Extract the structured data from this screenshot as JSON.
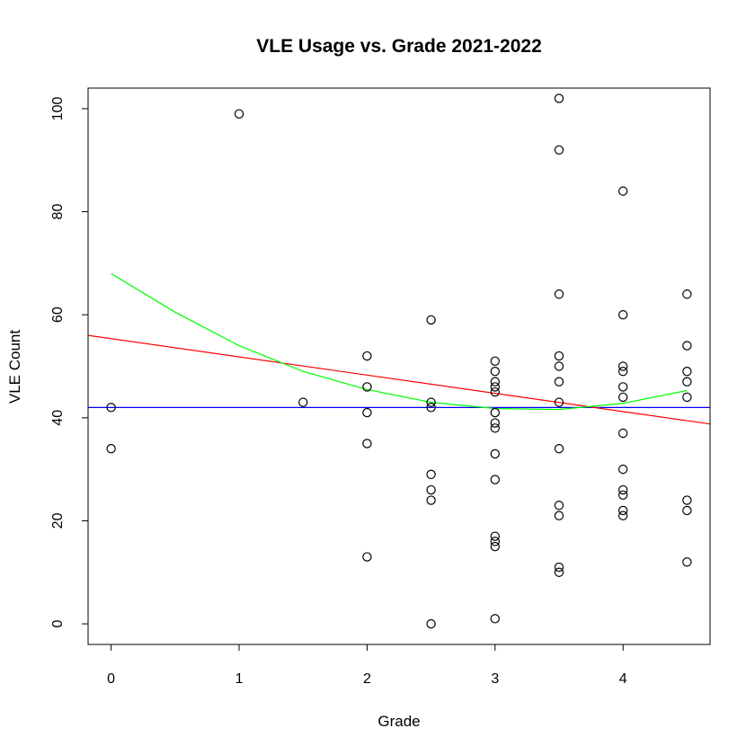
{
  "chart_data": {
    "type": "scatter",
    "title": "VLE Usage vs. Grade 2021-2022",
    "xlabel": "Grade",
    "ylabel": "VLE Count",
    "xlim": [
      -0.18,
      4.68
    ],
    "ylim": [
      -4,
      104
    ],
    "x_ticks": [
      0,
      1,
      2,
      3,
      4
    ],
    "y_ticks": [
      0,
      20,
      40,
      60,
      80,
      100
    ],
    "grid": false,
    "legend": "none",
    "point_color": "#000000",
    "points": [
      {
        "x": 0,
        "y": 42
      },
      {
        "x": 0,
        "y": 34
      },
      {
        "x": 1,
        "y": 99
      },
      {
        "x": 1.5,
        "y": 43
      },
      {
        "x": 2,
        "y": 52
      },
      {
        "x": 2,
        "y": 46
      },
      {
        "x": 2,
        "y": 41
      },
      {
        "x": 2,
        "y": 35
      },
      {
        "x": 2,
        "y": 13
      },
      {
        "x": 2.5,
        "y": 59
      },
      {
        "x": 2.5,
        "y": 43
      },
      {
        "x": 2.5,
        "y": 42
      },
      {
        "x": 2.5,
        "y": 29
      },
      {
        "x": 2.5,
        "y": 26
      },
      {
        "x": 2.5,
        "y": 24
      },
      {
        "x": 2.5,
        "y": 0
      },
      {
        "x": 3,
        "y": 51
      },
      {
        "x": 3,
        "y": 49
      },
      {
        "x": 3,
        "y": 47
      },
      {
        "x": 3,
        "y": 46
      },
      {
        "x": 3,
        "y": 45
      },
      {
        "x": 3,
        "y": 41
      },
      {
        "x": 3,
        "y": 39
      },
      {
        "x": 3,
        "y": 38
      },
      {
        "x": 3,
        "y": 33
      },
      {
        "x": 3,
        "y": 28
      },
      {
        "x": 3,
        "y": 17
      },
      {
        "x": 3,
        "y": 16
      },
      {
        "x": 3,
        "y": 15
      },
      {
        "x": 3,
        "y": 1
      },
      {
        "x": 3.5,
        "y": 102
      },
      {
        "x": 3.5,
        "y": 92
      },
      {
        "x": 3.5,
        "y": 64
      },
      {
        "x": 3.5,
        "y": 52
      },
      {
        "x": 3.5,
        "y": 50
      },
      {
        "x": 3.5,
        "y": 47
      },
      {
        "x": 3.5,
        "y": 43
      },
      {
        "x": 3.5,
        "y": 34
      },
      {
        "x": 3.5,
        "y": 23
      },
      {
        "x": 3.5,
        "y": 21
      },
      {
        "x": 3.5,
        "y": 11
      },
      {
        "x": 3.5,
        "y": 10
      },
      {
        "x": 4,
        "y": 84
      },
      {
        "x": 4,
        "y": 60
      },
      {
        "x": 4,
        "y": 50
      },
      {
        "x": 4,
        "y": 49
      },
      {
        "x": 4,
        "y": 46
      },
      {
        "x": 4,
        "y": 44
      },
      {
        "x": 4,
        "y": 37
      },
      {
        "x": 4,
        "y": 30
      },
      {
        "x": 4,
        "y": 26
      },
      {
        "x": 4,
        "y": 25
      },
      {
        "x": 4,
        "y": 22
      },
      {
        "x": 4,
        "y": 21
      },
      {
        "x": 4.5,
        "y": 64
      },
      {
        "x": 4.5,
        "y": 54
      },
      {
        "x": 4.5,
        "y": 49
      },
      {
        "x": 4.5,
        "y": 47
      },
      {
        "x": 4.5,
        "y": 44
      },
      {
        "x": 4.5,
        "y": 24
      },
      {
        "x": 4.5,
        "y": 22
      },
      {
        "x": 4.5,
        "y": 12
      }
    ],
    "lines": [
      {
        "color": "#0000ff",
        "kind": "horizontal",
        "y": 42
      },
      {
        "color": "#ff0000",
        "kind": "linear",
        "x": [
          -0.18,
          4.68
        ],
        "y": [
          56.0,
          38.8
        ]
      },
      {
        "color": "#00ff00",
        "kind": "smooth",
        "x": [
          0,
          0.5,
          1,
          1.5,
          2,
          2.5,
          3,
          3.5,
          4,
          4.5
        ],
        "y": [
          68,
          60.5,
          54,
          49,
          45.5,
          43,
          41.8,
          41.6,
          42.8,
          45.3
        ]
      }
    ]
  }
}
